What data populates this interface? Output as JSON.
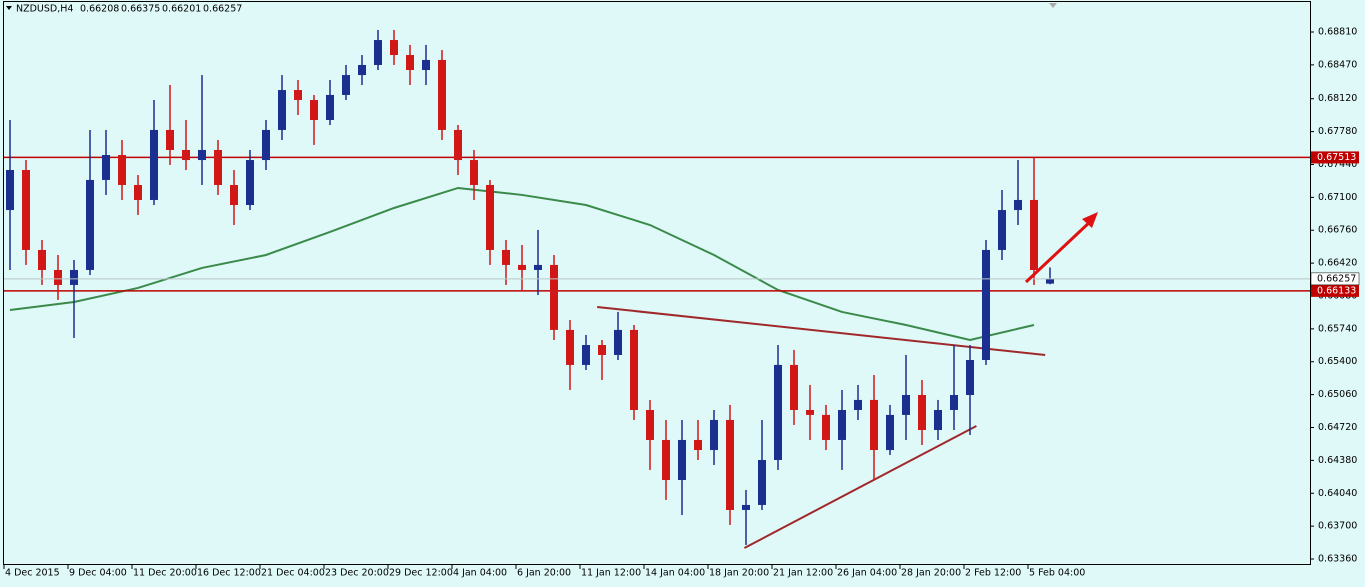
{
  "chart_data": {
    "type": "candlestick",
    "title": "NZDUSD,H4",
    "categories": [
      "4 Dec 2015",
      null,
      null,
      null,
      "9 Dec 04:00",
      null,
      null,
      null,
      "11 Dec 20:00",
      null,
      null,
      null,
      "16 Dec 12:00",
      null,
      null,
      null,
      "21 Dec 04:00",
      null,
      null,
      null,
      "23 Dec 20:00",
      null,
      null,
      null,
      "29 Dec 12:00",
      null,
      null,
      null,
      "4 Jan 04:00",
      null,
      null,
      null,
      "6 Jan 20:00",
      null,
      null,
      null,
      "11 Jan 12:00",
      null,
      null,
      null,
      "14 Jan 04:00",
      null,
      null,
      null,
      "18 Jan 20:00",
      null,
      null,
      null,
      "21 Jan 12:00",
      null,
      null,
      null,
      "26 Jan 04:00",
      null,
      null,
      null,
      "28 Jan 20:00",
      null,
      null,
      null,
      "2 Feb 12:00",
      null,
      null,
      null,
      "5 Feb 04:00",
      null
    ],
    "open": [
      0.66969,
      0.67383,
      0.66556,
      0.66349,
      0.66194,
      0.66349,
      0.6728,
      0.67538,
      0.67228,
      0.67073,
      0.67797,
      0.6759,
      0.67486,
      0.6759,
      0.67228,
      0.67021,
      0.67486,
      0.67797,
      0.6821,
      0.68107,
      0.679,
      0.68159,
      0.68365,
      0.68469,
      0.68727,
      0.68572,
      0.68417,
      0.68521,
      0.67797,
      0.67486,
      0.67228,
      0.66556,
      0.66401,
      0.66349,
      0.66401,
      0.65729,
      0.65367,
      0.65573,
      0.6547,
      0.65729,
      0.64901,
      0.64591,
      0.64177,
      0.64591,
      0.64487,
      0.64798,
      0.63867,
      0.63919,
      0.64384,
      0.65367,
      0.64901,
      0.6485,
      0.64591,
      0.64901,
      0.65005,
      0.64487,
      0.6485,
      0.65056,
      0.64694,
      0.64901,
      0.65056,
      0.65418,
      0.66556,
      0.66969,
      0.67073,
      0.66208
    ],
    "high": [
      0.679,
      0.67486,
      0.66659,
      0.66504,
      0.66452,
      0.67797,
      0.67797,
      0.67693,
      0.67331,
      0.68107,
      0.68262,
      0.679,
      0.68365,
      0.67693,
      0.67383,
      0.6759,
      0.679,
      0.68365,
      0.68314,
      0.68159,
      0.68314,
      0.68469,
      0.68572,
      0.68831,
      0.68831,
      0.68676,
      0.68676,
      0.68624,
      0.67848,
      0.6759,
      0.6728,
      0.66659,
      0.66607,
      0.66763,
      0.66504,
      0.65832,
      0.65677,
      0.65625,
      0.65915,
      0.6578,
      0.65005,
      0.64798,
      0.64798,
      0.64798,
      0.64901,
      0.64953,
      0.64074,
      0.64798,
      0.65573,
      0.65522,
      0.6516,
      0.64953,
      0.65108,
      0.6516,
      0.65263,
      0.64953,
      0.6547,
      0.65211,
      0.65005,
      0.65573,
      0.65573,
      0.66659,
      0.67176,
      0.67486,
      0.67507,
      0.66375
    ],
    "low": [
      0.66349,
      0.66401,
      0.66194,
      0.66039,
      0.65646,
      0.66297,
      0.67125,
      0.67073,
      0.66918,
      0.67021,
      0.67435,
      0.67383,
      0.67228,
      0.67125,
      0.66814,
      0.66969,
      0.67383,
      0.67693,
      0.67952,
      0.67642,
      0.67848,
      0.68107,
      0.68262,
      0.68417,
      0.68469,
      0.68262,
      0.68262,
      0.67693,
      0.67331,
      0.67073,
      0.66401,
      0.66194,
      0.66142,
      0.6609,
      0.65625,
      0.65108,
      0.65315,
      0.65211,
      0.65418,
      0.64798,
      0.64281,
      0.63971,
      0.63815,
      0.64384,
      0.64332,
      0.63712,
      0.63505,
      0.63867,
      0.64281,
      0.64746,
      0.64591,
      0.64487,
      0.64281,
      0.64798,
      0.64177,
      0.64436,
      0.64591,
      0.64539,
      0.64591,
      0.64694,
      0.64643,
      0.65367,
      0.66452,
      0.66814,
      0.66194,
      0.66201
    ],
    "close": [
      0.67383,
      0.66556,
      0.66349,
      0.66194,
      0.66349,
      0.6728,
      0.67538,
      0.67228,
      0.67073,
      0.67797,
      0.6759,
      0.67486,
      0.6759,
      0.67228,
      0.67021,
      0.67486,
      0.67797,
      0.6821,
      0.68107,
      0.679,
      0.68159,
      0.68365,
      0.68469,
      0.68727,
      0.68572,
      0.68417,
      0.68521,
      0.67797,
      0.67486,
      0.67228,
      0.66556,
      0.66401,
      0.66349,
      0.66401,
      0.65729,
      0.65367,
      0.65573,
      0.6547,
      0.65729,
      0.64901,
      0.64591,
      0.64177,
      0.64591,
      0.64487,
      0.64798,
      0.63867,
      0.63919,
      0.64384,
      0.65367,
      0.64901,
      0.6485,
      0.64591,
      0.64901,
      0.65005,
      0.64487,
      0.6485,
      0.65056,
      0.64694,
      0.64901,
      0.65056,
      0.65418,
      0.66556,
      0.66969,
      0.67073,
      0.66349,
      0.66257
    ],
    "up_color": "#1a2f8f",
    "down_color": "#d01818",
    "moving_average": {
      "color": "#3a8a4a",
      "x": [
        0,
        4,
        8,
        12,
        16,
        20,
        24,
        28,
        32,
        36,
        40,
        44,
        48,
        52,
        56,
        60,
        64
      ],
      "values": [
        0.65935,
        0.66018,
        0.66163,
        0.6637,
        0.66504,
        0.66742,
        0.6699,
        0.67197,
        0.67125,
        0.67021,
        0.66814,
        0.66504,
        0.66142,
        0.65915,
        0.6578,
        0.65625,
        0.6578
      ]
    },
    "levels": [
      {
        "value": 0.67513,
        "color": "#c00000"
      },
      {
        "value": 0.66133,
        "color": "#c00000"
      }
    ],
    "trendlines": [
      {
        "x": [
          36.7,
          64.7
        ],
        "y": [
          0.65966,
          0.6547
        ],
        "color": "#a0282a"
      },
      {
        "x": [
          45.9,
          60.4
        ],
        "y": [
          0.63474,
          0.64736
        ],
        "color": "#a0282a"
      }
    ],
    "ylim": [
      0.63298,
      0.69141
    ],
    "yticks": [
      {
        "value": 0.6336,
        "label": "0.63360"
      },
      {
        "value": 0.637,
        "label": "0.63700"
      },
      {
        "value": 0.6404,
        "label": "0.64040"
      },
      {
        "value": 0.6438,
        "label": "0.64380"
      },
      {
        "value": 0.6472,
        "label": "0.64720"
      },
      {
        "value": 0.6506,
        "label": "0.65060"
      },
      {
        "value": 0.654,
        "label": "0.65400"
      },
      {
        "value": 0.6574,
        "label": "0.65740"
      },
      {
        "value": 0.6608,
        "label": "0.66080"
      },
      {
        "value": 0.6642,
        "label": "0.66420"
      },
      {
        "value": 0.6676,
        "label": "0.66760"
      },
      {
        "value": 0.671,
        "label": "0.67100"
      },
      {
        "value": 0.6744,
        "label": "0.67440"
      },
      {
        "value": 0.6778,
        "label": "0.67780"
      },
      {
        "value": 0.6812,
        "label": "0.68120"
      },
      {
        "value": 0.6847,
        "label": "0.68470"
      },
      {
        "value": 0.6881,
        "label": "0.68810"
      }
    ],
    "grid": false
  }
}
